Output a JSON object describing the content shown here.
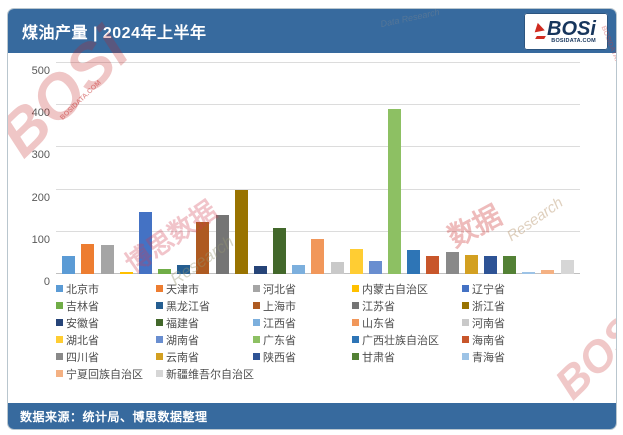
{
  "header": {
    "title": "煤油产量 | 2024年上半年",
    "logo": {
      "text": "BOSi",
      "subtext": "BOSIDATA.COM"
    }
  },
  "footer": {
    "source": "数据来源：统计局、博思数据整理"
  },
  "watermarks": {
    "brand": "BOSi",
    "site": "BOSIDATA.COM",
    "cn": "博思数据",
    "research": "Research",
    "data_cn": "数据",
    "data_research": "Data Research"
  },
  "chart_data": {
    "type": "bar",
    "title": "煤油产量 | 2024年上半年",
    "xlabel": "",
    "ylabel": "",
    "ylim": [
      0,
      500
    ],
    "yticks": [
      0,
      100,
      200,
      300,
      400,
      500
    ],
    "grid": true,
    "legend_position": "bottom",
    "series": [
      {
        "name": "北京市",
        "value": 42,
        "color": "#5B9BD5"
      },
      {
        "name": "天津市",
        "value": 72,
        "color": "#ED7D31"
      },
      {
        "name": "河北省",
        "value": 68,
        "color": "#A5A5A5"
      },
      {
        "name": "内蒙古自治区",
        "value": 5,
        "color": "#FFC000"
      },
      {
        "name": "辽宁省",
        "value": 147,
        "color": "#4472C4"
      },
      {
        "name": "吉林省",
        "value": 12,
        "color": "#70AD47"
      },
      {
        "name": "黑龙江省",
        "value": 22,
        "color": "#255E91"
      },
      {
        "name": "上海市",
        "value": 124,
        "color": "#AE5A21"
      },
      {
        "name": "江苏省",
        "value": 139,
        "color": "#757575"
      },
      {
        "name": "浙江省",
        "value": 198,
        "color": "#997300"
      },
      {
        "name": "安徽省",
        "value": 20,
        "color": "#264478"
      },
      {
        "name": "福建省",
        "value": 110,
        "color": "#43682B"
      },
      {
        "name": "江西省",
        "value": 22,
        "color": "#7CAFDD"
      },
      {
        "name": "山东省",
        "value": 84,
        "color": "#F1975A"
      },
      {
        "name": "河南省",
        "value": 28,
        "color": "#C9C9C9"
      },
      {
        "name": "湖北省",
        "value": 60,
        "color": "#FFCD33"
      },
      {
        "name": "湖南省",
        "value": 32,
        "color": "#698ED0"
      },
      {
        "name": "广东省",
        "value": 392,
        "color": "#8DC063"
      },
      {
        "name": "广西壮族自治区",
        "value": 57,
        "color": "#2E75B6"
      },
      {
        "name": "海南省",
        "value": 43,
        "color": "#C8562B"
      },
      {
        "name": "四川省",
        "value": 52,
        "color": "#898989"
      },
      {
        "name": "云南省",
        "value": 46,
        "color": "#D3A021"
      },
      {
        "name": "陕西省",
        "value": 43,
        "color": "#2E5395"
      },
      {
        "name": "甘肃省",
        "value": 43,
        "color": "#538135"
      },
      {
        "name": "青海省",
        "value": 4,
        "color": "#9DC3E6"
      },
      {
        "name": "宁夏回族自治区",
        "value": 10,
        "color": "#F4B183"
      },
      {
        "name": "新疆维吾尔自治区",
        "value": 34,
        "color": "#D6D6D6"
      }
    ]
  }
}
